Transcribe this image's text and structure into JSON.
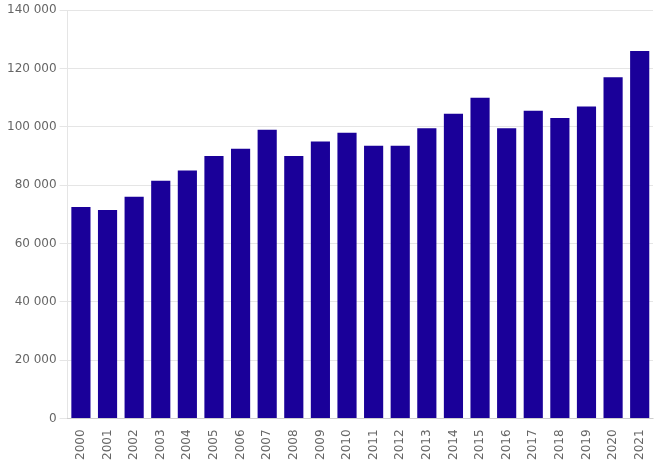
{
  "chart_data": {
    "type": "bar",
    "categories": [
      "2000",
      "2001",
      "2002",
      "2003",
      "2004",
      "2005",
      "2006",
      "2007",
      "2008",
      "2009",
      "2010",
      "2011",
      "2012",
      "2013",
      "2014",
      "2015",
      "2016",
      "2017",
      "2018",
      "2019",
      "2020",
      "2021"
    ],
    "values": [
      72500,
      71500,
      76000,
      81500,
      85000,
      90000,
      92500,
      99000,
      90000,
      95000,
      98000,
      93500,
      93500,
      99500,
      104500,
      110000,
      99500,
      105500,
      103000,
      107000,
      117000,
      126000
    ],
    "color": "#1a0099",
    "ylim": [
      0,
      140000
    ],
    "yticks": [
      0,
      {
        "value": 20000,
        "label": "20 000"
      },
      {
        "value": 40000,
        "label": "40 000"
      },
      {
        "value": 60000,
        "label": "60 000"
      },
      {
        "value": 80000,
        "label": "80 000"
      },
      {
        "value": 100000,
        "label": "100 000"
      },
      {
        "value": 120000,
        "label": "120 000"
      },
      {
        "value": 140000,
        "label": "140 000"
      }
    ],
    "grid": true
  }
}
